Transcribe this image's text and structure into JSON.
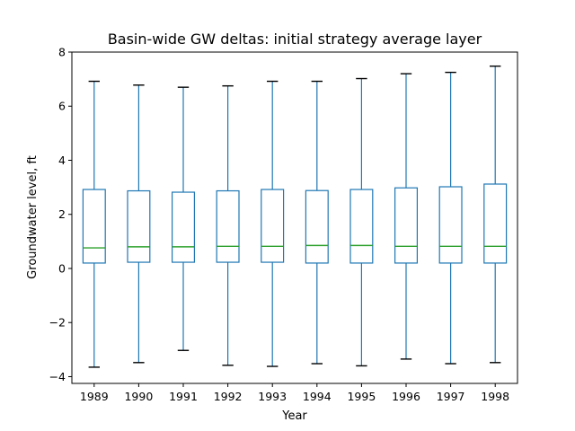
{
  "chart_data": {
    "type": "box",
    "title": "Basin-wide GW deltas: initial strategy average layer",
    "xlabel": "Year",
    "ylabel": "Groundwater level, ft",
    "ylim": [
      -4.25,
      8.0
    ],
    "yticks": [
      -4,
      -2,
      0,
      2,
      4,
      6,
      8
    ],
    "grid": false,
    "legend": "none",
    "colors": {
      "box": "#1f77b4",
      "median": "#2ca02c",
      "cap": "#000000"
    },
    "categories": [
      "1989",
      "1990",
      "1991",
      "1992",
      "1993",
      "1994",
      "1995",
      "1996",
      "1997",
      "1998"
    ],
    "boxes": [
      {
        "category": "1989",
        "whislo": -3.65,
        "q1": 0.2,
        "med": 0.76,
        "q3": 2.92,
        "whishi": 6.92
      },
      {
        "category": "1990",
        "whislo": -3.48,
        "q1": 0.23,
        "med": 0.8,
        "q3": 2.87,
        "whishi": 6.78
      },
      {
        "category": "1991",
        "whislo": -3.03,
        "q1": 0.23,
        "med": 0.8,
        "q3": 2.82,
        "whishi": 6.7
      },
      {
        "category": "1992",
        "whislo": -3.58,
        "q1": 0.23,
        "med": 0.82,
        "q3": 2.87,
        "whishi": 6.75
      },
      {
        "category": "1993",
        "whislo": -3.62,
        "q1": 0.23,
        "med": 0.82,
        "q3": 2.92,
        "whishi": 6.92
      },
      {
        "category": "1994",
        "whislo": -3.52,
        "q1": 0.2,
        "med": 0.85,
        "q3": 2.88,
        "whishi": 6.92
      },
      {
        "category": "1995",
        "whislo": -3.6,
        "q1": 0.2,
        "med": 0.85,
        "q3": 2.92,
        "whishi": 7.02
      },
      {
        "category": "1996",
        "whislo": -3.35,
        "q1": 0.2,
        "med": 0.82,
        "q3": 2.98,
        "whishi": 7.2
      },
      {
        "category": "1997",
        "whislo": -3.52,
        "q1": 0.2,
        "med": 0.82,
        "q3": 3.02,
        "whishi": 7.25
      },
      {
        "category": "1998",
        "whislo": -3.48,
        "q1": 0.2,
        "med": 0.82,
        "q3": 3.12,
        "whishi": 7.48
      }
    ]
  }
}
